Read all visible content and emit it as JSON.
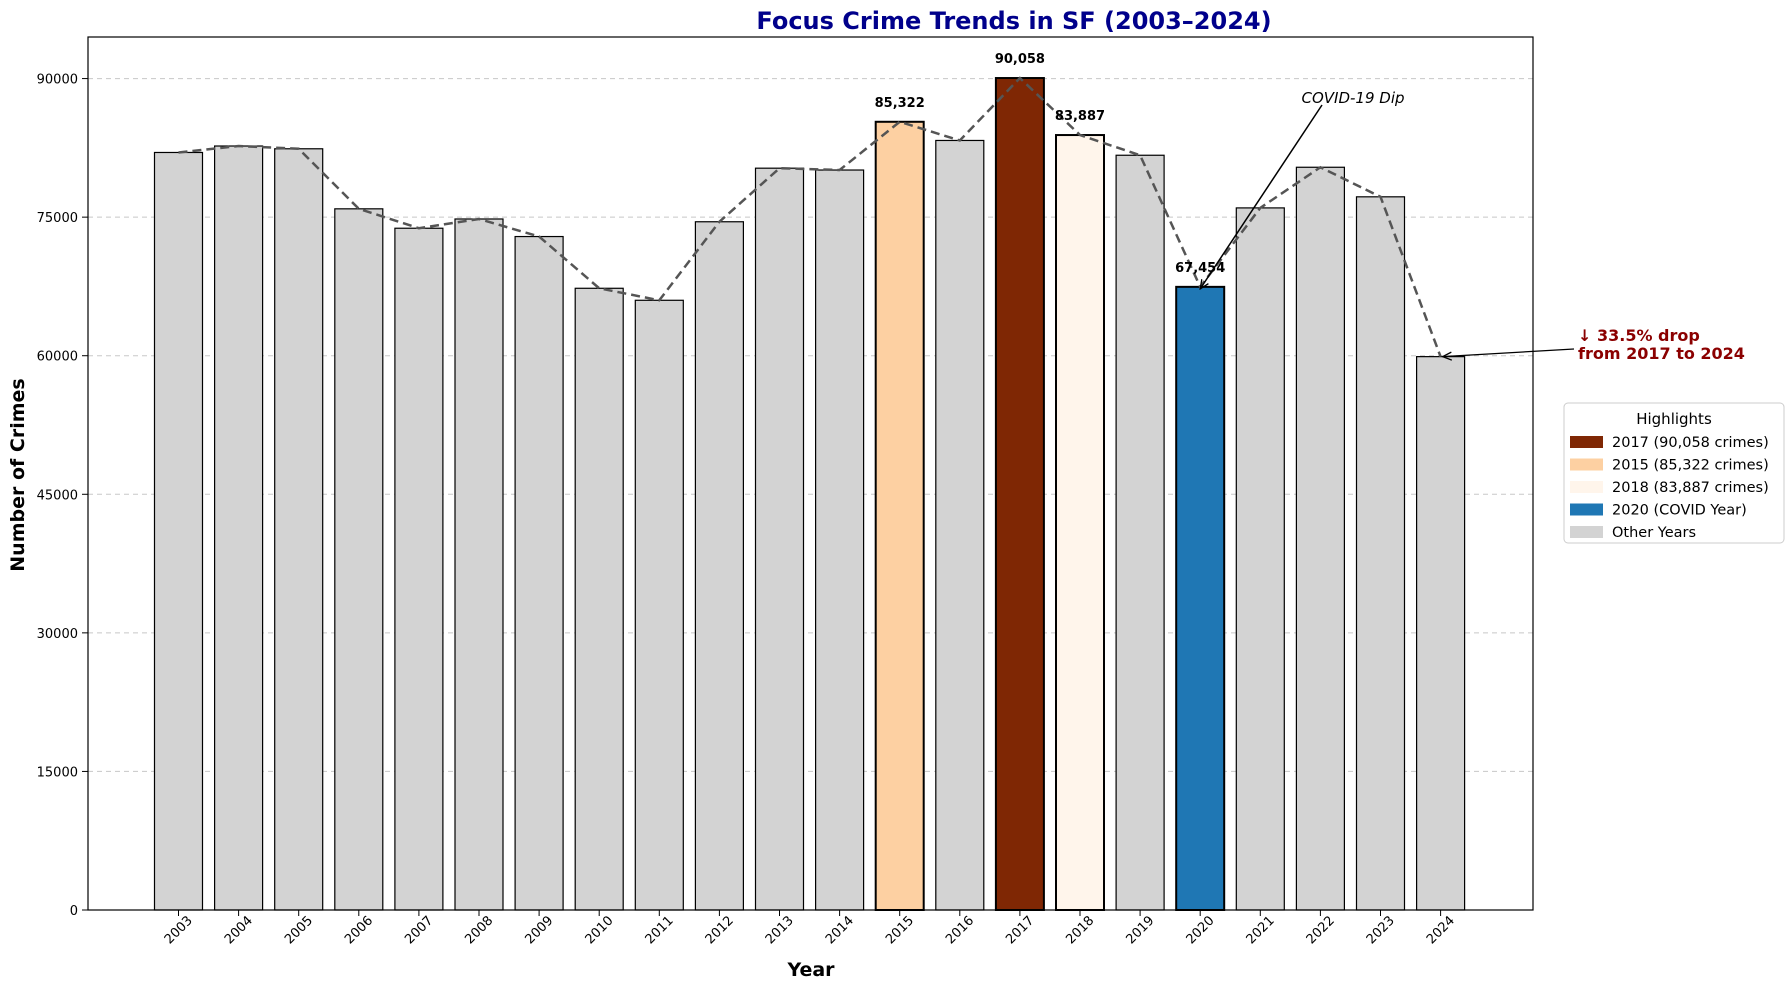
{
  "chart_data": {
    "type": "bar",
    "title": "Focus Crime Trends in SF (2003–2024)",
    "xlabel": "Year",
    "ylabel": "Number of Crimes",
    "ylim": [
      0,
      94500
    ],
    "yticks": [
      0,
      15000,
      30000,
      45000,
      60000,
      75000,
      90000
    ],
    "grid": "horizontal dashed",
    "categories": [
      "2003",
      "2004",
      "2005",
      "2006",
      "2007",
      "2008",
      "2009",
      "2010",
      "2011",
      "2012",
      "2013",
      "2014",
      "2015",
      "2016",
      "2017",
      "2018",
      "2019",
      "2020",
      "2021",
      "2022",
      "2023",
      "2024"
    ],
    "values": [
      82000,
      82700,
      82400,
      75900,
      73800,
      74800,
      72900,
      67300,
      66000,
      74500,
      80300,
      80100,
      85322,
      83300,
      90058,
      83887,
      81700,
      67454,
      76000,
      80400,
      77200,
      59900
    ],
    "bar_colors": [
      "#d3d3d3",
      "#d3d3d3",
      "#d3d3d3",
      "#d3d3d3",
      "#d3d3d3",
      "#d3d3d3",
      "#d3d3d3",
      "#d3d3d3",
      "#d3d3d3",
      "#d3d3d3",
      "#d3d3d3",
      "#d3d3d3",
      "#fdd0a2",
      "#d3d3d3",
      "#7f2704",
      "#fff5eb",
      "#d3d3d3",
      "#1f77b4",
      "#d3d3d3",
      "#d3d3d3",
      "#d3d3d3",
      "#d3d3d3"
    ],
    "trend_line": {
      "style": "dashed",
      "color": "#555555"
    },
    "data_labels": [
      {
        "year": "2015",
        "text": "85,322"
      },
      {
        "year": "2017",
        "text": "90,058"
      },
      {
        "year": "2018",
        "text": "83,887"
      },
      {
        "year": "2020",
        "text": "67,454"
      }
    ],
    "annotations": [
      {
        "text": "COVID-19 Dip",
        "points_to": "2020"
      },
      {
        "line1": "↓ 33.5% drop",
        "line2": "from 2017 to 2024",
        "points_to": "2024",
        "color": "#8b0000"
      }
    ],
    "legend": {
      "title": "Highlights",
      "placement": "right",
      "items": [
        {
          "label": "2017 (90,058 crimes)",
          "color": "#7f2704"
        },
        {
          "label": "2015 (85,322 crimes)",
          "color": "#fdd0a2"
        },
        {
          "label": "2018 (83,887 crimes)",
          "color": "#fff5eb"
        },
        {
          "label": "2020 (COVID Year)",
          "color": "#1f77b4"
        },
        {
          "label": "Other Years",
          "color": "#d3d3d3"
        }
      ]
    },
    "title_color": "#00008b"
  }
}
